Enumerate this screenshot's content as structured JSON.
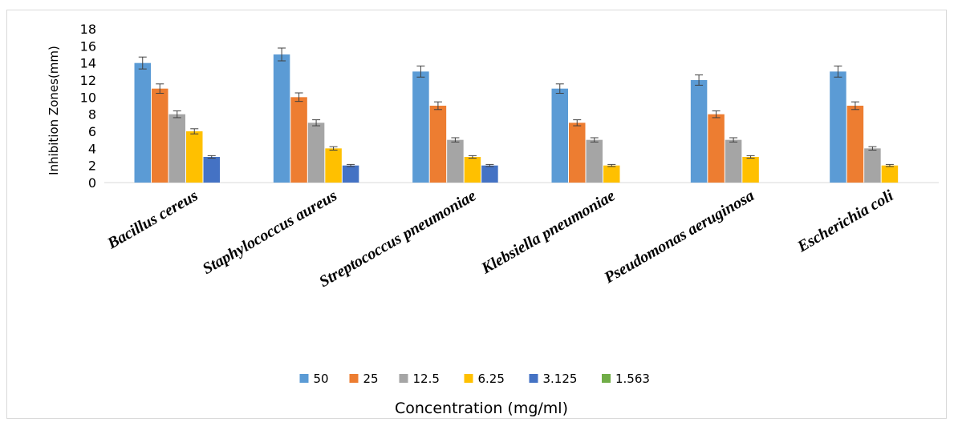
{
  "chart_data": {
    "type": "bar",
    "title": "",
    "xlabel": "Concentration (mg/ml)",
    "ylabel": "Inhibition Zones(mm)",
    "ylim": [
      0,
      18
    ],
    "yticks": [
      "0",
      "2",
      "4",
      "6",
      "8",
      "10",
      "12",
      "14",
      "16",
      "18"
    ],
    "legend_position": "bottom",
    "grid": false,
    "categories": [
      "Bacillus cereus",
      "Staphylococcus aureus",
      "Streptococcus pneumoniae",
      "Klebsiella pneumoniae",
      "Pseudomonas aeruginosa",
      "Escherichia coli"
    ],
    "series": [
      {
        "name": "50",
        "color": "#5b9bd5",
        "values": [
          14,
          15,
          13,
          11,
          12,
          13
        ],
        "errors": [
          0.7,
          0.75,
          0.65,
          0.55,
          0.6,
          0.65
        ]
      },
      {
        "name": "25",
        "color": "#ed7d31",
        "values": [
          11,
          10,
          9,
          7,
          8,
          9
        ],
        "errors": [
          0.55,
          0.5,
          0.45,
          0.35,
          0.4,
          0.45
        ]
      },
      {
        "name": "12.5",
        "color": "#a5a5a5",
        "values": [
          8,
          7,
          5,
          5,
          5,
          4
        ],
        "errors": [
          0.4,
          0.35,
          0.25,
          0.25,
          0.25,
          0.2
        ]
      },
      {
        "name": "6.25",
        "color": "#ffc000",
        "values": [
          6,
          4,
          3,
          2,
          3,
          2
        ],
        "errors": [
          0.3,
          0.2,
          0.15,
          0.1,
          0.15,
          0.1
        ]
      },
      {
        "name": "3.125",
        "color": "#4472c4",
        "values": [
          3,
          2,
          2,
          0,
          0,
          0
        ],
        "errors": [
          0.15,
          0.1,
          0.1,
          0,
          0,
          0
        ]
      },
      {
        "name": "1.563",
        "color": "#70ad47",
        "values": [
          0,
          0,
          0,
          0,
          0,
          0
        ],
        "errors": [
          0,
          0,
          0,
          0,
          0,
          0
        ]
      }
    ]
  }
}
